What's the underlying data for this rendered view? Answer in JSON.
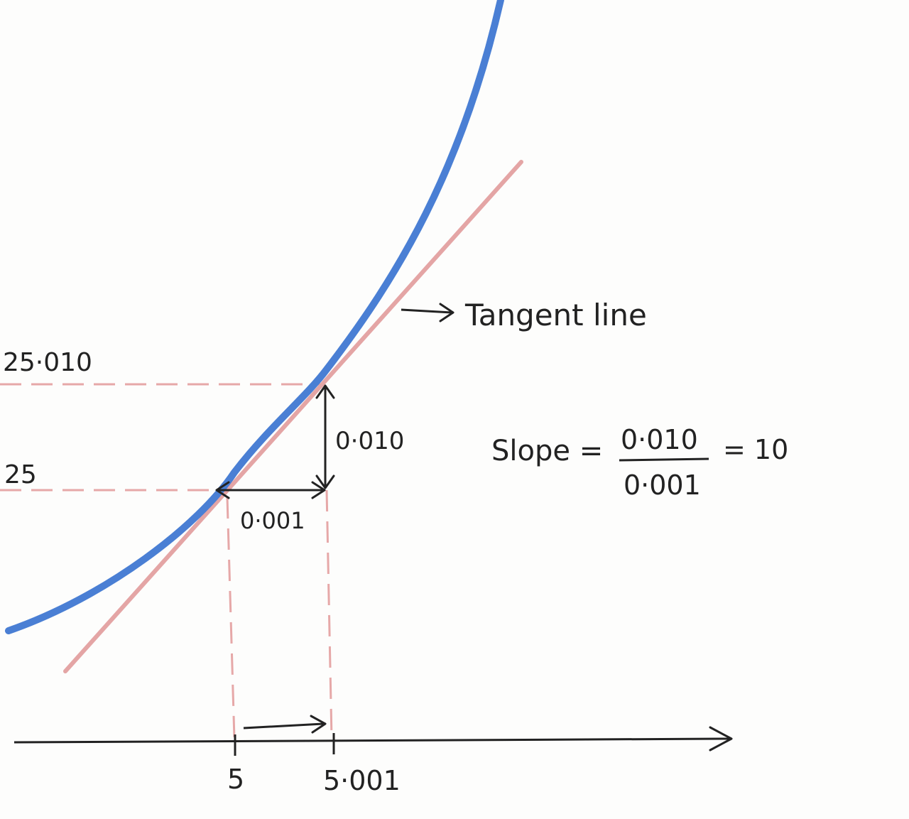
{
  "colors": {
    "curve": "#4a7fd4",
    "tangent": "#e4a5a5",
    "guide": "#e6a8a8",
    "ink": "#222222"
  },
  "labels": {
    "tangent_line": "Tangent line",
    "y_upper": "25·010",
    "y_lower": "25",
    "x_left": "5",
    "x_right": "5·001",
    "rise": "0·010",
    "run": "0·001",
    "slope_word": "Slope =",
    "slope_numerator": "0·010",
    "slope_denominator": "0·001",
    "slope_result": "= 10"
  }
}
